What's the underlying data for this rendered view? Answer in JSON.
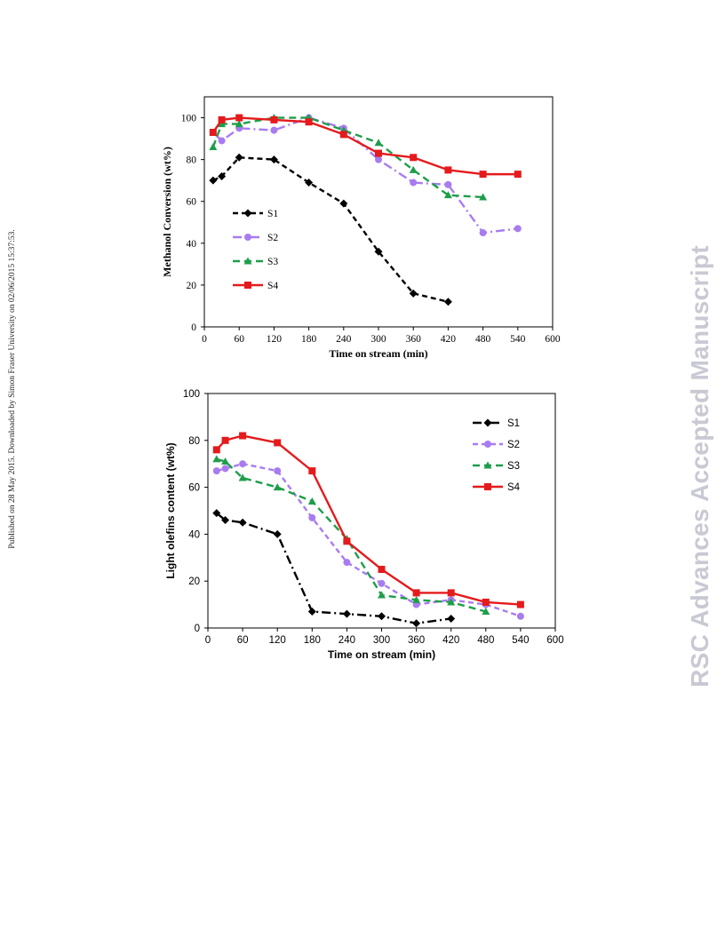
{
  "side_note": "Published on 28 May 2015. Downloaded by Simon Fraser University on 02/06/2015 15:37:53.",
  "watermark": "RSC Advances Accepted Manuscript",
  "chart_data": [
    {
      "type": "line",
      "title": "",
      "xlabel": "Time on stream (min)",
      "ylabel": "Methanol Conversion (wt%)",
      "xlim": [
        0,
        600
      ],
      "ylim": [
        0,
        110
      ],
      "xticks": [
        0,
        60,
        120,
        180,
        240,
        300,
        360,
        420,
        480,
        540,
        600
      ],
      "yticks": [
        0,
        20,
        40,
        60,
        80,
        100
      ],
      "grid": false,
      "legend_position": "bottom-left",
      "series": [
        {
          "name": "S1",
          "color": "#000000",
          "marker": "diamond",
          "dash": "6,4",
          "x": [
            15,
            30,
            60,
            120,
            180,
            240,
            300,
            360,
            420
          ],
          "y": [
            70,
            72,
            81,
            80,
            69,
            59,
            36,
            16,
            12
          ]
        },
        {
          "name": "S2",
          "color": "#a87cf0",
          "marker": "circle",
          "dash": "10,4,2,4",
          "x": [
            15,
            30,
            60,
            120,
            180,
            240,
            300,
            360,
            420,
            480,
            540
          ],
          "y": [
            93,
            89,
            95,
            94,
            100,
            95,
            80,
            69,
            68,
            45,
            47
          ]
        },
        {
          "name": "S3",
          "color": "#1e9e4a",
          "marker": "triangle",
          "dash": "8,5",
          "x": [
            15,
            30,
            60,
            120,
            180,
            240,
            300,
            360,
            420,
            480
          ],
          "y": [
            86,
            97,
            97,
            100,
            100,
            94,
            88,
            75,
            63,
            62
          ]
        },
        {
          "name": "S4",
          "color": "#e41a1c",
          "marker": "square",
          "dash": "",
          "x": [
            15,
            30,
            60,
            120,
            180,
            240,
            300,
            360,
            420,
            480,
            540
          ],
          "y": [
            93,
            99,
            100,
            99,
            98,
            92,
            83,
            81,
            75,
            73,
            73
          ]
        }
      ]
    },
    {
      "type": "line",
      "title": "",
      "xlabel": "Time on stream (min)",
      "ylabel": "Light olefins content (wt%)",
      "xlim": [
        0,
        600
      ],
      "ylim": [
        0,
        100
      ],
      "xticks": [
        0,
        60,
        120,
        180,
        240,
        300,
        360,
        420,
        480,
        540,
        600
      ],
      "yticks": [
        0,
        20,
        40,
        60,
        80,
        100
      ],
      "grid": false,
      "legend_position": "top-right",
      "series": [
        {
          "name": "S1",
          "color": "#000000",
          "marker": "diamond",
          "dash": "10,4,2,4",
          "x": [
            15,
            30,
            60,
            120,
            180,
            240,
            300,
            360,
            420
          ],
          "y": [
            49,
            46,
            45,
            40,
            7,
            6,
            5,
            2,
            4
          ]
        },
        {
          "name": "S2",
          "color": "#a87cf0",
          "marker": "circle",
          "dash": "6,4",
          "x": [
            15,
            30,
            60,
            120,
            180,
            240,
            300,
            360,
            420,
            480,
            540
          ],
          "y": [
            67,
            68,
            70,
            67,
            47,
            28,
            19,
            10,
            12,
            10,
            5
          ]
        },
        {
          "name": "S3",
          "color": "#1e9e4a",
          "marker": "triangle",
          "dash": "8,5",
          "x": [
            15,
            30,
            60,
            120,
            180,
            240,
            300,
            360,
            420,
            480
          ],
          "y": [
            72,
            71,
            64,
            60,
            54,
            38,
            14,
            12,
            11,
            7
          ]
        },
        {
          "name": "S4",
          "color": "#e41a1c",
          "marker": "square",
          "dash": "",
          "x": [
            15,
            30,
            60,
            120,
            180,
            240,
            300,
            360,
            420,
            480,
            540
          ],
          "y": [
            76,
            80,
            82,
            79,
            67,
            37,
            25,
            15,
            15,
            11,
            10
          ]
        }
      ]
    }
  ]
}
